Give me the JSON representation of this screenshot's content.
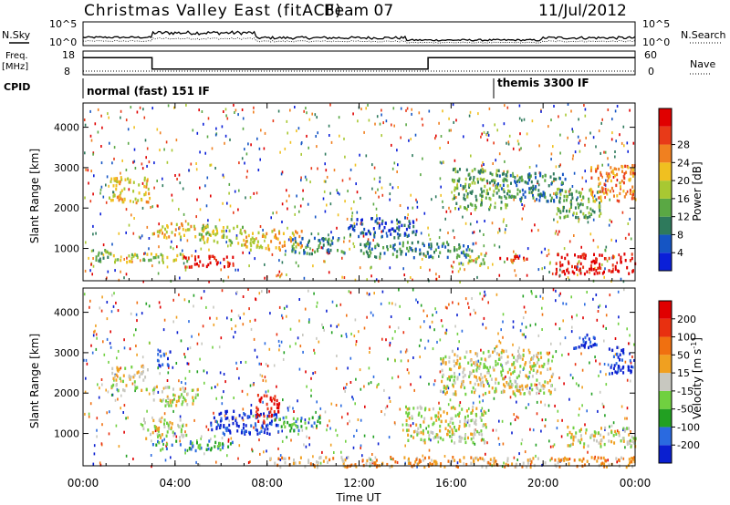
{
  "header": {
    "title": "Christmas Valley East (fitACF)",
    "beam": "Beam 07",
    "date": "11/Jul/2012"
  },
  "status_panel": {
    "nsky_label": "N.Sky",
    "nsky_ticks": [
      "10^5",
      "10^0"
    ],
    "nsearch_label": "N.Search",
    "nsearch_ticks": [
      "10^5",
      "10^0"
    ],
    "freq_label_1": "Freq.",
    "freq_label_2": "[MHz]",
    "freq_ticks": [
      "18",
      "8"
    ],
    "nave_label": "Nave",
    "nave_ticks": [
      "60",
      "0"
    ],
    "cpid_label": "CPID",
    "cpid_modes": [
      {
        "label": "normal (fast) 151 IF",
        "start_hour": 0
      },
      {
        "label": "themis 3300 IF",
        "start_hour": 18.1
      }
    ],
    "freq_mhz": [
      {
        "from_hour": 0,
        "to_hour": 3.0,
        "value": 15.2
      },
      {
        "from_hour": 3.0,
        "to_hour": 15.0,
        "value": 10.4
      },
      {
        "from_hour": 15.0,
        "to_hour": 24,
        "value": 15.2
      }
    ]
  },
  "chart_data": [
    {
      "type": "heatmap",
      "name": "power-panel",
      "ylabel": "Slant Range [km]",
      "y_ticks": [
        1000,
        2000,
        3000,
        4000
      ],
      "ylim": [
        200,
        4600
      ],
      "xlim": [
        0,
        24
      ],
      "colorbar": {
        "label": "Power [dB]",
        "ticks": [
          "4",
          "8",
          "12",
          "16",
          "20",
          "24",
          "28"
        ],
        "colors": [
          "#0a1fd8",
          "#1555c4",
          "#2e7a5c",
          "#5aa844",
          "#a8c832",
          "#f0c020",
          "#f08020",
          "#e83a18",
          "#e00000"
        ]
      },
      "echo_regions": [
        {
          "x0": 1.1,
          "x1": 2.9,
          "y0": 2150,
          "y1": 2800,
          "level": 5
        },
        {
          "x0": 0.3,
          "x1": 1.2,
          "y0": 700,
          "y1": 1000,
          "level": 3
        },
        {
          "x0": 1.2,
          "x1": 4.5,
          "y0": 680,
          "y1": 900,
          "level": 4
        },
        {
          "x0": 3.0,
          "x1": 5.2,
          "y0": 1300,
          "y1": 1650,
          "level": 5
        },
        {
          "x0": 4.3,
          "x1": 6.5,
          "y0": 560,
          "y1": 850,
          "level": 8
        },
        {
          "x0": 5.0,
          "x1": 7.0,
          "y0": 1100,
          "y1": 1600,
          "level": 4
        },
        {
          "x0": 7.0,
          "x1": 9.5,
          "y0": 1000,
          "y1": 1500,
          "level": 5
        },
        {
          "x0": 9.0,
          "x1": 11.5,
          "y0": 900,
          "y1": 1300,
          "level": 2
        },
        {
          "x0": 11.5,
          "x1": 14.5,
          "y0": 1300,
          "y1": 1800,
          "level": 1
        },
        {
          "x0": 12.0,
          "x1": 17.0,
          "y0": 800,
          "y1": 1200,
          "level": 2
        },
        {
          "x0": 16.0,
          "x1": 18.5,
          "y0": 2000,
          "y1": 3000,
          "level": 3
        },
        {
          "x0": 18.0,
          "x1": 21.0,
          "y0": 2200,
          "y1": 2900,
          "level": 2
        },
        {
          "x0": 20.5,
          "x1": 22.5,
          "y0": 1800,
          "y1": 2500,
          "level": 3
        },
        {
          "x0": 22.0,
          "x1": 24.0,
          "y0": 2200,
          "y1": 3100,
          "level": 6
        },
        {
          "x0": 20.5,
          "x1": 24.0,
          "y0": 400,
          "y1": 900,
          "level": 8
        },
        {
          "x0": 16.2,
          "x1": 17.5,
          "y0": 600,
          "y1": 900,
          "level": 4
        },
        {
          "x0": 18.0,
          "x1": 19.3,
          "y0": 680,
          "y1": 860,
          "level": 7
        }
      ]
    },
    {
      "type": "heatmap",
      "name": "velocity-panel",
      "ylabel": "Slant Range [km]",
      "y_ticks": [
        1000,
        2000,
        3000,
        4000
      ],
      "ylim": [
        200,
        4600
      ],
      "xlim": [
        0,
        24
      ],
      "xlabel": "Time UT",
      "x_ticks": [
        "00:00",
        "04:00",
        "08:00",
        "12:00",
        "16:00",
        "20:00",
        "00:00"
      ],
      "colorbar": {
        "label": "Velocity [m s",
        "label_sup": "-1",
        "label_end": "]",
        "ticks": [
          "200",
          "100",
          "50",
          "15",
          "-15",
          "-50",
          "-100",
          "-200"
        ],
        "colors": [
          "#0a1fd0",
          "#2a6ae0",
          "#22a022",
          "#70d040",
          "#c8c8c0",
          "#f0a020",
          "#f07010",
          "#e83010",
          "#e00000"
        ]
      },
      "echo_regions": [
        {
          "x0": 1.2,
          "x1": 2.8,
          "y0": 2100,
          "y1": 2700,
          "level": 4
        },
        {
          "x0": 2.5,
          "x1": 4.5,
          "y0": 900,
          "y1": 1400,
          "level": 4
        },
        {
          "x0": 3.0,
          "x1": 5.0,
          "y0": 1700,
          "y1": 2200,
          "level": 4
        },
        {
          "x0": 3.2,
          "x1": 3.8,
          "y0": 2700,
          "y1": 3100,
          "level": 0
        },
        {
          "x0": 3.0,
          "x1": 6.5,
          "y0": 600,
          "y1": 850,
          "level": 2
        },
        {
          "x0": 5.5,
          "x1": 8.5,
          "y0": 1000,
          "y1": 1600,
          "level": 0
        },
        {
          "x0": 7.5,
          "x1": 8.5,
          "y0": 1300,
          "y1": 2000,
          "level": 8
        },
        {
          "x0": 8.3,
          "x1": 10.4,
          "y0": 1100,
          "y1": 1450,
          "level": 2
        },
        {
          "x0": 14.0,
          "x1": 17.5,
          "y0": 800,
          "y1": 1700,
          "level": 4
        },
        {
          "x0": 15.5,
          "x1": 20.5,
          "y0": 2000,
          "y1": 3100,
          "level": 4
        },
        {
          "x0": 21.3,
          "x1": 22.3,
          "y0": 3100,
          "y1": 3500,
          "level": 0
        },
        {
          "x0": 22.8,
          "x1": 23.8,
          "y0": 2500,
          "y1": 3200,
          "level": 0
        },
        {
          "x0": 21.0,
          "x1": 24.0,
          "y0": 700,
          "y1": 1200,
          "level": 4
        },
        {
          "x0": 8.0,
          "x1": 24.0,
          "y0": 200,
          "y1": 450,
          "level": 5
        }
      ]
    }
  ]
}
